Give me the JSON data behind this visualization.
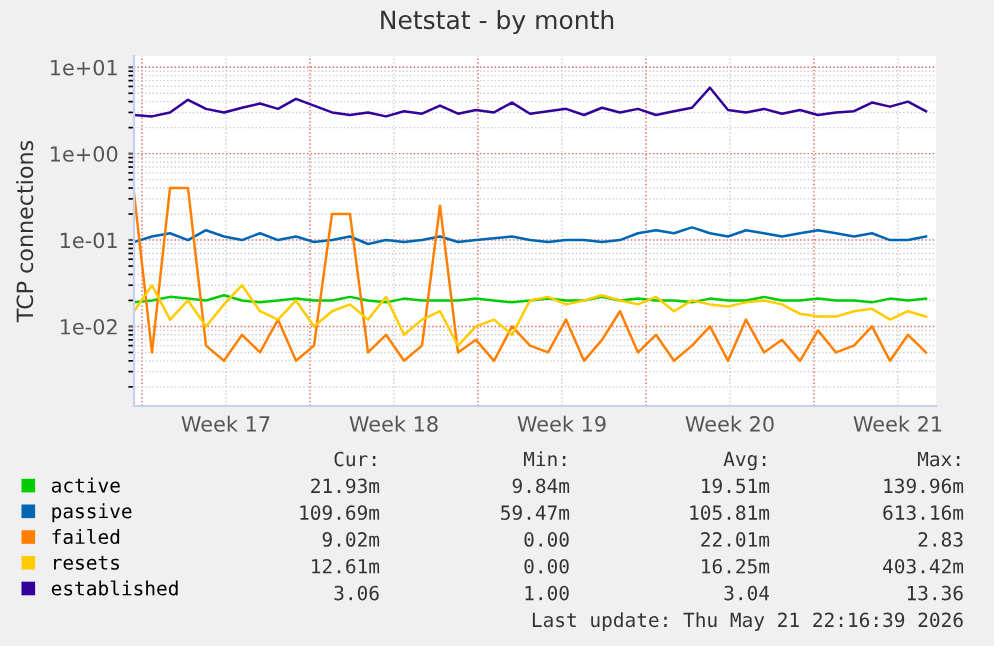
{
  "chart_data": {
    "type": "line",
    "title": "Netstat - by month",
    "ylabel": "TCP connections",
    "x": [
      "2026-04-19T16:00",
      "2026-04-20T10:00",
      "2026-04-21T04:00",
      "2026-04-21T22:00",
      "2026-04-22T16:00",
      "2026-04-23T10:00",
      "2026-04-24T04:00",
      "2026-04-24T22:00",
      "2026-04-25T16:00",
      "2026-04-26T10:00",
      "2026-04-27T04:00",
      "2026-04-27T22:00",
      "2026-04-28T16:00",
      "2026-04-29T10:00",
      "2026-04-30T04:00",
      "2026-04-30T22:00",
      "2026-05-01T16:00",
      "2026-05-02T10:00",
      "2026-05-03T04:00",
      "2026-05-03T22:00",
      "2026-05-04T16:00",
      "2026-05-05T10:00",
      "2026-05-06T04:00",
      "2026-05-06T22:00",
      "2026-05-07T16:00",
      "2026-05-08T10:00",
      "2026-05-09T04:00",
      "2026-05-09T22:00",
      "2026-05-10T16:00",
      "2026-05-11T10:00",
      "2026-05-12T04:00",
      "2026-05-12T22:00",
      "2026-05-13T16:00",
      "2026-05-14T10:00",
      "2026-05-15T04:00",
      "2026-05-15T22:00",
      "2026-05-16T16:00",
      "2026-05-17T10:00",
      "2026-05-18T04:00",
      "2026-05-18T22:00",
      "2026-05-19T16:00",
      "2026-05-20T10:00",
      "2026-05-21T04:00",
      "2026-05-21T22:00",
      "2026-05-22T16:00"
    ],
    "series": [
      {
        "name": "active",
        "color": "#00cc00",
        "values": [
          0.019,
          0.02,
          0.022,
          0.021,
          0.02,
          0.023,
          0.02,
          0.019,
          0.02,
          0.021,
          0.02,
          0.02,
          0.022,
          0.02,
          0.019,
          0.021,
          0.02,
          0.02,
          0.02,
          0.021,
          0.02,
          0.019,
          0.02,
          0.021,
          0.02,
          0.02,
          0.022,
          0.02,
          0.021,
          0.02,
          0.02,
          0.019,
          0.021,
          0.02,
          0.02,
          0.022,
          0.02,
          0.02,
          0.021,
          0.02,
          0.02,
          0.019,
          0.021,
          0.02,
          0.021
        ]
      },
      {
        "name": "passive",
        "color": "#0066b3",
        "values": [
          0.095,
          0.11,
          0.12,
          0.1,
          0.13,
          0.11,
          0.1,
          0.12,
          0.1,
          0.11,
          0.095,
          0.1,
          0.11,
          0.09,
          0.1,
          0.095,
          0.1,
          0.11,
          0.095,
          0.1,
          0.105,
          0.11,
          0.1,
          0.095,
          0.1,
          0.1,
          0.095,
          0.1,
          0.12,
          0.13,
          0.12,
          0.14,
          0.12,
          0.11,
          0.13,
          0.12,
          0.11,
          0.12,
          0.13,
          0.12,
          0.11,
          0.12,
          0.1,
          0.1,
          0.11
        ]
      },
      {
        "name": "failed",
        "color": "#ff8000",
        "values": [
          0.35,
          0.005,
          0.4,
          0.4,
          0.006,
          0.004,
          0.008,
          0.005,
          0.012,
          0.004,
          0.006,
          0.2,
          0.2,
          0.005,
          0.008,
          0.004,
          0.006,
          0.25,
          0.005,
          0.007,
          0.004,
          0.01,
          0.006,
          0.005,
          0.012,
          0.004,
          0.007,
          0.015,
          0.005,
          0.008,
          0.004,
          0.006,
          0.01,
          0.004,
          0.012,
          0.005,
          0.007,
          0.004,
          0.009,
          0.005,
          0.006,
          0.01,
          0.004,
          0.008,
          0.005
        ]
      },
      {
        "name": "resets",
        "color": "#ffcc00",
        "values": [
          0.015,
          0.03,
          0.012,
          0.02,
          0.01,
          0.018,
          0.03,
          0.015,
          0.012,
          0.02,
          0.01,
          0.015,
          0.018,
          0.012,
          0.022,
          0.008,
          0.012,
          0.015,
          0.006,
          0.01,
          0.012,
          0.008,
          0.02,
          0.022,
          0.018,
          0.02,
          0.023,
          0.02,
          0.018,
          0.022,
          0.015,
          0.02,
          0.018,
          0.017,
          0.019,
          0.02,
          0.018,
          0.014,
          0.013,
          0.013,
          0.015,
          0.016,
          0.012,
          0.015,
          0.013
        ]
      },
      {
        "name": "established",
        "color": "#330099",
        "values": [
          2.8,
          2.7,
          3.0,
          4.2,
          3.3,
          3.0,
          3.4,
          3.8,
          3.3,
          4.3,
          3.6,
          3.0,
          2.8,
          3.0,
          2.7,
          3.1,
          2.9,
          3.6,
          2.9,
          3.2,
          3.0,
          3.9,
          2.9,
          3.1,
          3.3,
          2.8,
          3.4,
          3.0,
          3.3,
          2.8,
          3.1,
          3.4,
          5.8,
          3.2,
          3.0,
          3.3,
          2.9,
          3.2,
          2.8,
          3.0,
          3.1,
          3.9,
          3.5,
          4.0,
          3.1
        ]
      }
    ],
    "log": "y",
    "xlim": [
      "2026-04-19T16:00",
      "2026-05-23T02:00"
    ],
    "ylim": [
      0.0012,
      13.5
    ],
    "xticks": [
      {
        "value": "2026-04-20",
        "label": null
      },
      {
        "value": "2026-04-23T12:00",
        "label": "Week 17"
      },
      {
        "value": "2026-04-27",
        "label": null
      },
      {
        "value": "2026-04-30T12:00",
        "label": "Week 18"
      },
      {
        "value": "2026-05-04",
        "label": null
      },
      {
        "value": "2026-05-07T12:00",
        "label": "Week 19"
      },
      {
        "value": "2026-05-11",
        "label": null
      },
      {
        "value": "2026-05-14T12:00",
        "label": "Week 20"
      },
      {
        "value": "2026-05-18",
        "label": null
      },
      {
        "value": "2026-05-21T12:00",
        "label": "Week 21"
      }
    ],
    "yticks": [
      {
        "value": 0.01,
        "label": "1e-02"
      },
      {
        "value": 0.1,
        "label": "1e-01"
      },
      {
        "value": 1,
        "label": "1e+00"
      },
      {
        "value": 10,
        "label": "1e+01"
      }
    ],
    "grid": true,
    "legend": "bottom",
    "marker": "none",
    "line_style": "solid",
    "annotations": [
      "Cur:",
      "Min:",
      "Avg:",
      "Max:",
      "21.93m",
      "9.84m",
      "19.51m",
      "139.96m",
      "109.69m",
      "59.47m",
      "105.81m",
      "613.16m",
      "9.02m",
      "0.00",
      "22.01m",
      "2.83",
      "12.61m",
      "0.00",
      "16.25m",
      "403.42m",
      "3.06",
      "1.00",
      "3.04",
      "13.36",
      "Last update: Thu May 21 22:16:39 2026"
    ]
  }
}
